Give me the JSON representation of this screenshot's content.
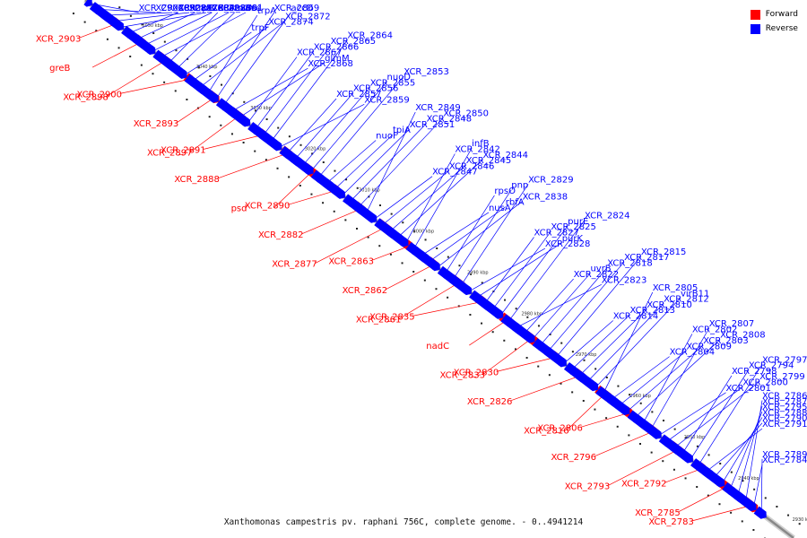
{
  "caption": "Xanthomonas campestris pv. raphani 756C, complete genome. - 0..4941214",
  "legend": [
    {
      "label": "Forward",
      "color": "#ff0000"
    },
    {
      "label": "Reverse",
      "color": "#0000ff"
    }
  ],
  "colors": {
    "forward": "#ff0000",
    "reverse": "#0000ff",
    "backbone": "#888888"
  },
  "ticks": [
    "3050 kbp",
    "3040 kbp",
    "3030 kbp",
    "3020 kbp",
    "3010 kbp",
    "3000 kbp",
    "2990 kbp",
    "2980 kbp",
    "2970 kbp",
    "2960 kbp",
    "2950 kbp",
    "2940 kbp",
    "2930 kbp"
  ],
  "forward_labels": [
    "XCR_2903",
    "greB",
    "XCR_2898",
    "XCR_2900",
    "XCR_2893",
    "XCR_2897",
    "XCR_2891",
    "XCR_2888",
    "psd",
    "XCR_2890",
    "XCR_2882",
    "XCR_2877",
    "XCR_2863",
    "XCR_2862",
    "XCR_2861",
    "XCR_2835",
    "nadC",
    "XCR_2833",
    "XCR_2830",
    "XCR_2826",
    "XCR_2816",
    "XCR_2806",
    "XCR_2796",
    "XCR_2793",
    "XCR_2792",
    "XCR_2785",
    "XCR_2783"
  ],
  "reverse_labels": [
    "XCR_2904",
    "XCR_2892",
    "XCR_2887",
    "XCR_2884",
    "XCR_2880",
    "XCR_2876",
    "trpB",
    "XCR_2886",
    "aroC",
    "asd",
    "XCR_2881",
    "truA",
    "trpF",
    "XCR_2874",
    "XCR_2872",
    "trpA",
    "XCR_2869",
    "accD",
    "XCR_2868",
    "glmM",
    "XCR_2867",
    "XCR_2866",
    "XCR_2865",
    "XCR_2864",
    "XCR_2859",
    "XCR_2857",
    "XCR_2856",
    "XCR_2855",
    "nuoD",
    "XCR_2853",
    "nuoF",
    "tpiA",
    "XCR_2851",
    "XCR_2848",
    "XCR_2850",
    "XCR_2849",
    "XCR_2847",
    "XCR_2846",
    "XCR_2845",
    "XCR_2844",
    "XCR_2842",
    "infB",
    "nusA",
    "rbfA",
    "XCR_2838",
    "rpsO",
    "pnp",
    "XCR_2829",
    "XCR_2828",
    "purK",
    "XCR_2827",
    "XCR_2825",
    "purE",
    "XCR_2824",
    "XCR_2823",
    "XCR_2822",
    "uvrB",
    "XCR_2818",
    "XCR_2817",
    "XCR_2815",
    "XCR_2814",
    "XCR_2813",
    "XCR_2810",
    "XCR_2812",
    "virB11",
    "XCR_2805",
    "XCR_2804",
    "XCR_2809",
    "XCR_2803",
    "XCR_2808",
    "XCR_2802",
    "XCR_2807",
    "XCR_2801",
    "XCR_2800",
    "XCR_2799",
    "XCR_2798",
    "XCR_2794",
    "XCR_2797",
    "XCR_2791",
    "XCR_2790",
    "XCR_2788",
    "XCR_2795",
    "XCR_2787",
    "XCR_2786",
    "XCR_2784",
    "XCR_2789"
  ]
}
